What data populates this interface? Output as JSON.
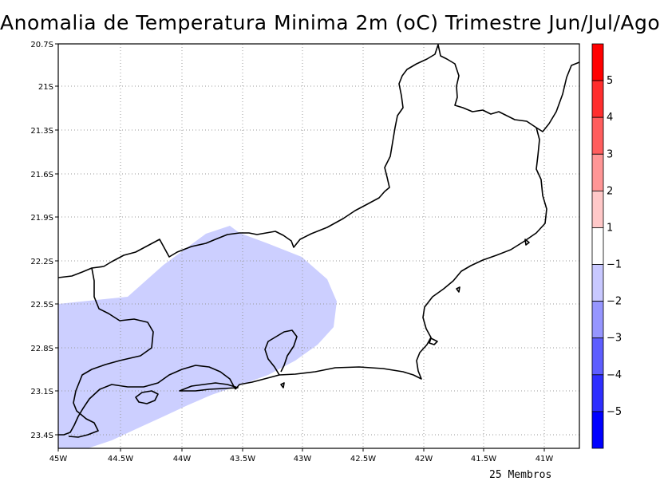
{
  "title": "Anomalia de Temperatura Minima 2m (oC) Trimestre Jun/Jul/Ago",
  "footnote": "25 Membros",
  "axes": {
    "lat_labels": [
      "20.7S",
      "21S",
      "21.3S",
      "21.6S",
      "21.9S",
      "22.2S",
      "22.5S",
      "22.8S",
      "23.1S",
      "23.4S"
    ],
    "lon_labels": [
      "45W",
      "44.5W",
      "44W",
      "43.5W",
      "43W",
      "42.5W",
      "42W",
      "41.5W",
      "41W"
    ],
    "grid": true
  },
  "colorbar": {
    "colors": [
      "#0000ff",
      "#2e2eff",
      "#5e5eff",
      "#9696ff",
      "#c8c8ff",
      "#ffffff",
      "#ffc8c8",
      "#ff9696",
      "#ff5e5e",
      "#ff2e2e",
      "#ff0000"
    ],
    "labels": [
      "5",
      "4",
      "3",
      "2",
      "1",
      "−1",
      "−2",
      "−3",
      "−4",
      "−5"
    ]
  },
  "shading": {
    "color": "#cccfff",
    "anomaly_range": "-2 to -1"
  }
}
